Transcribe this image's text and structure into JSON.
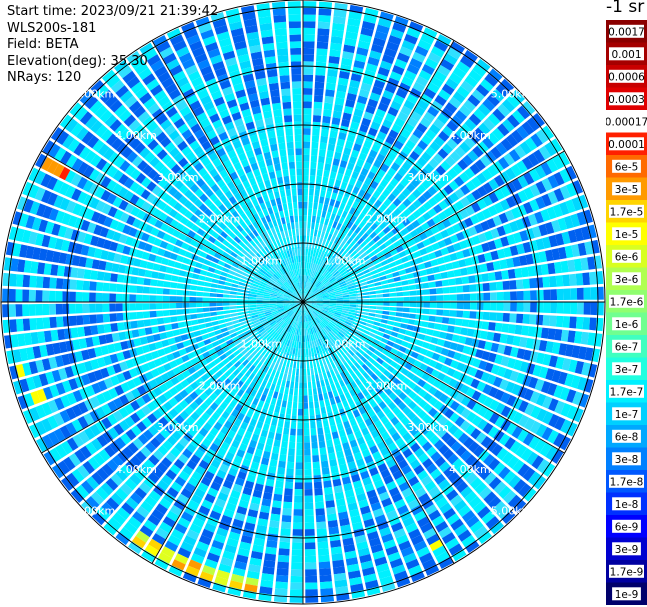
{
  "header": {
    "start_time": "Start time: 2023/09/21 21:39:42",
    "instrument": "WLS200s-181",
    "field": "Field: BETA",
    "elevation": "Elevation(deg): 35.30",
    "nrays": "NRays: 120"
  },
  "colorbar": {
    "title": "-1 sr",
    "labels": [
      "0.0017",
      "0.001",
      "0.0006",
      "0.0003",
      "0.00017",
      "0.0001",
      "6e-5",
      "3e-5",
      "1.7e-5",
      "1e-5",
      "6e-6",
      "3e-6",
      "1.7e-6",
      "1e-6",
      "6e-7",
      "3e-7",
      "1.7e-7",
      "1e-7",
      "6e-8",
      "3e-8",
      "1.7e-8",
      "1e-8",
      "6e-9",
      "3e-9",
      "1.7e-9",
      "1e-9"
    ],
    "colors": [
      "#8b0000",
      "#a50000",
      "#c80000",
      "#e00000",
      "#ffffff",
      "#ff2000",
      "#ff6a00",
      "#ff9a00",
      "#ffd400",
      "#ffff00",
      "#d8ff20",
      "#b0ff50",
      "#90ff70",
      "#70ff90",
      "#40ffc0",
      "#20ffe0",
      "#00f0ff",
      "#00d0ff",
      "#00a8ff",
      "#0080ff",
      "#0058ff",
      "#0030ff",
      "#0000ff",
      "#0000d0",
      "#0000a0",
      "#00006b"
    ]
  },
  "chart_data": {
    "type": "heatmap",
    "projection": "polar (PPI scan)",
    "variable": "BETA",
    "units": "sr-1",
    "rays": 120,
    "elevation_deg": 35.3,
    "range_ring_labels": [
      "1.00km",
      "2.00km",
      "3.00km",
      "4.00km",
      "5.00km"
    ],
    "range_rings_km": [
      1,
      2,
      3,
      4,
      5
    ],
    "max_range_km": 5.1,
    "background_level": "1e-8 to 1e-7 (cyan / light blue)",
    "features": [
      {
        "description": "yellow/orange arc",
        "azimuth_deg": [
          190,
          215
        ],
        "range_km": [
          4.8,
          5.0
        ],
        "value": "1e-6 to 1e-5"
      },
      {
        "description": "red/orange patch",
        "azimuth_deg": [
          297,
          300
        ],
        "range_km": [
          4.6,
          5.0
        ],
        "value": "3e-5 to 1e-4"
      },
      {
        "description": "yellow patch",
        "azimuth_deg": [
          256,
          258
        ],
        "range_km": [
          4.9,
          5.0
        ],
        "value": "1e-5"
      }
    ],
    "grid": true
  }
}
